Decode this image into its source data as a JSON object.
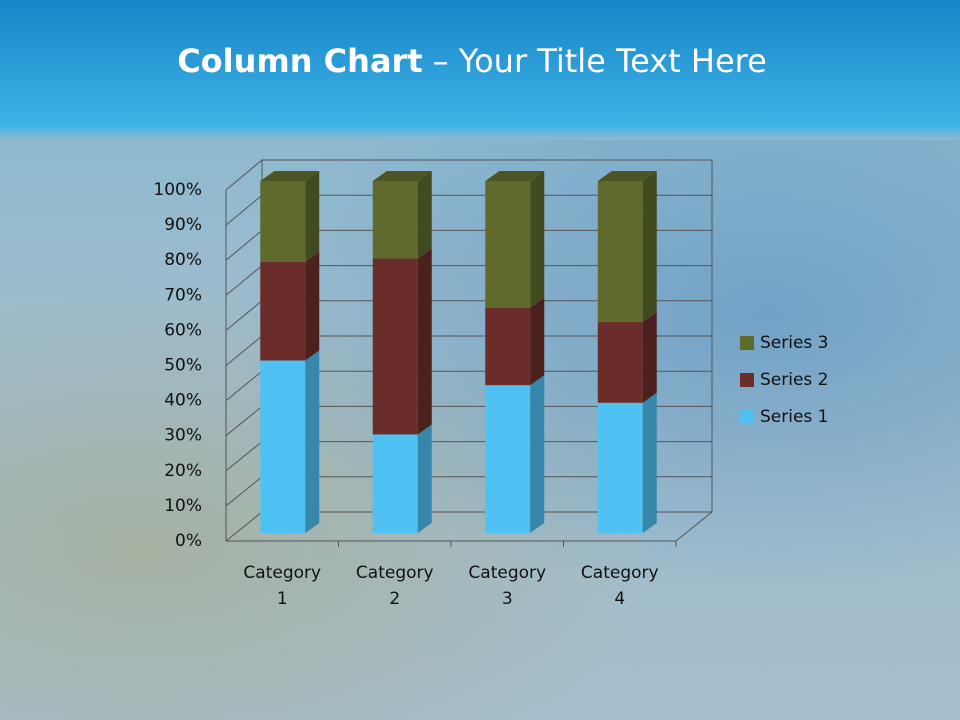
{
  "chart_data": {
    "type": "stacked_bar_3d",
    "title_parts": [
      "Column Chart",
      "– Your Title Text Here"
    ],
    "categories": [
      "Category 1",
      "Category 2",
      "Category 3",
      "Category 4"
    ],
    "series": [
      {
        "name": "Series 1",
        "color": "#4fc1f3",
        "values": [
          49,
          28,
          42,
          37
        ]
      },
      {
        "name": "Series 2",
        "color": "#6b2d2a",
        "values": [
          28,
          50,
          22,
          23
        ]
      },
      {
        "name": "Series 3",
        "color": "#5f6a2c",
        "values": [
          23,
          22,
          36,
          40
        ]
      }
    ],
    "ylim": [
      0,
      100
    ],
    "yticks": [
      {
        "value": 0,
        "label": "0%"
      },
      {
        "value": 10,
        "label": "10%"
      },
      {
        "value": 20,
        "label": "20%"
      },
      {
        "value": 30,
        "label": "30%"
      },
      {
        "value": 40,
        "label": "40%"
      },
      {
        "value": 50,
        "label": "50%"
      },
      {
        "value": 60,
        "label": "60%"
      },
      {
        "value": 70,
        "label": "70%"
      },
      {
        "value": 80,
        "label": "80%"
      },
      {
        "value": 90,
        "label": "90%"
      },
      {
        "value": 100,
        "label": "100%"
      }
    ],
    "grid": true,
    "legend": "right"
  }
}
